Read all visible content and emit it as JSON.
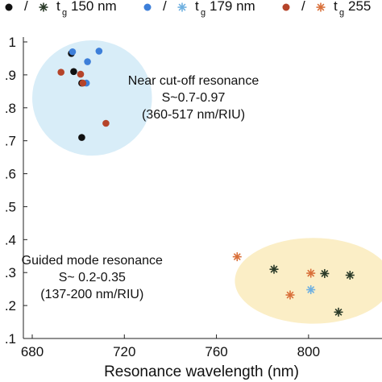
{
  "chart_data": {
    "type": "scatter",
    "xlabel": "Resonance wavelength (nm)",
    "ylabel": "",
    "xlim": [
      680,
      820
    ],
    "ylim": [
      0.1,
      1.0
    ],
    "x_ticks": [
      680,
      720,
      760,
      800
    ],
    "x_tick_labels": [
      "680",
      "720",
      "760",
      "800"
    ],
    "y_ticks": [
      0.1,
      0.2,
      0.3,
      0.4,
      0.5,
      0.6,
      0.7,
      0.8,
      0.9,
      1.0
    ],
    "y_tick_labels": [
      ".1",
      ".2",
      ".3",
      ".4",
      ".5",
      ".6",
      ".7",
      ".8",
      ".9",
      "1"
    ],
    "grid": false,
    "legend": {
      "position": "top",
      "slash": "/",
      "entries": [
        {
          "t": "t",
          "sub": "g",
          "label": "150 nm",
          "dot_color": "#111111",
          "star_color": "#2a3a28"
        },
        {
          "t": "t",
          "sub": "g",
          "label": "179 nm",
          "dot_color": "#3d7fd9",
          "star_color": "#6fb0e0"
        },
        {
          "t": "t",
          "sub": "g",
          "label": "255",
          "dot_color": "#b5442a",
          "star_color": "#d9703a"
        }
      ]
    },
    "regions": [
      {
        "name": "cutoff",
        "cx": 706,
        "cy": 0.83,
        "rx": 26,
        "ry": 0.175,
        "color": "#d8edf8"
      },
      {
        "name": "guided",
        "cx": 802,
        "cy": 0.275,
        "rx": 34,
        "ry": 0.13,
        "color": "#fbeec6"
      }
    ],
    "annotations": [
      {
        "lines": [
          "Near cut-off resonance",
          "S~0.7-0.97",
          "(360-517 nm/RIU)"
        ],
        "x": 750,
        "y": 0.87
      },
      {
        "lines": [
          "Guided mode resonance",
          "S~ 0.2-0.35",
          "(137-200 nm/RIU)"
        ],
        "x": 706,
        "y": 0.325
      }
    ],
    "series": [
      {
        "marker": "dot",
        "color": "#111111",
        "points": [
          [
            697,
            0.965
          ],
          [
            698,
            0.91
          ],
          [
            701.5,
            0.875
          ],
          [
            701.5,
            0.71
          ]
        ]
      },
      {
        "marker": "dot",
        "color": "#3d7fd9",
        "points": [
          [
            697.5,
            0.97
          ],
          [
            704,
            0.94
          ],
          [
            709,
            0.972
          ],
          [
            703.5,
            0.875
          ]
        ]
      },
      {
        "marker": "dot",
        "color": "#b5442a",
        "points": [
          [
            692.5,
            0.908
          ],
          [
            701,
            0.902
          ],
          [
            702,
            0.875
          ],
          [
            712,
            0.753
          ]
        ]
      },
      {
        "marker": "star",
        "color": "#2a3a28",
        "points": [
          [
            785,
            0.31
          ],
          [
            807,
            0.297
          ],
          [
            818,
            0.292
          ],
          [
            813,
            0.18
          ]
        ]
      },
      {
        "marker": "star",
        "color": "#6fb0e0",
        "points": [
          [
            801,
            0.248
          ]
        ]
      },
      {
        "marker": "star",
        "color": "#d9703a",
        "points": [
          [
            769,
            0.348
          ],
          [
            801,
            0.298
          ],
          [
            792,
            0.232
          ]
        ]
      }
    ]
  }
}
